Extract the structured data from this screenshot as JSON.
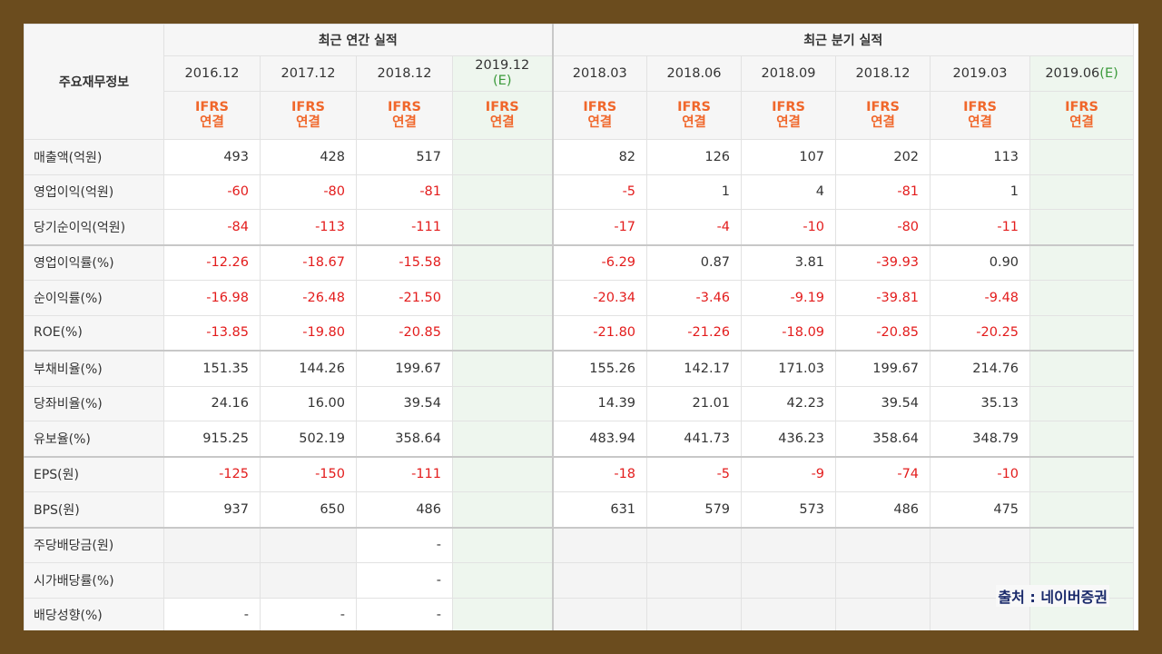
{
  "corner_label": "주요재무정보",
  "groups": {
    "annual": "최근 연간 실적",
    "quarter": "최근 분기 실적"
  },
  "annual_periods": [
    {
      "label": "2016.12",
      "est": ""
    },
    {
      "label": "2017.12",
      "est": ""
    },
    {
      "label": "2018.12",
      "est": ""
    },
    {
      "label": "2019.12",
      "est": "(E)"
    }
  ],
  "quarter_periods": [
    {
      "label": "2018.03",
      "est": ""
    },
    {
      "label": "2018.06",
      "est": ""
    },
    {
      "label": "2018.09",
      "est": ""
    },
    {
      "label": "2018.12",
      "est": ""
    },
    {
      "label": "2019.03",
      "est": ""
    },
    {
      "label": "2019.06",
      "est": "(E)"
    }
  ],
  "ifrs_line1": "IFRS",
  "ifrs_line2": "연결",
  "rows": [
    {
      "label": "매출액(억원)",
      "group_start": false,
      "annual": [
        "493",
        "428",
        "517",
        ""
      ],
      "quarter": [
        "82",
        "126",
        "107",
        "202",
        "113",
        ""
      ]
    },
    {
      "label": "영업이익(억원)",
      "group_start": false,
      "annual": [
        "-60",
        "-80",
        "-81",
        ""
      ],
      "quarter": [
        "-5",
        "1",
        "4",
        "-81",
        "1",
        ""
      ]
    },
    {
      "label": "당기순이익(억원)",
      "group_start": false,
      "annual": [
        "-84",
        "-113",
        "-111",
        ""
      ],
      "quarter": [
        "-17",
        "-4",
        "-10",
        "-80",
        "-11",
        ""
      ]
    },
    {
      "label": "영업이익률(%)",
      "group_start": true,
      "annual": [
        "-12.26",
        "-18.67",
        "-15.58",
        ""
      ],
      "quarter": [
        "-6.29",
        "0.87",
        "3.81",
        "-39.93",
        "0.90",
        ""
      ]
    },
    {
      "label": "순이익률(%)",
      "group_start": false,
      "annual": [
        "-16.98",
        "-26.48",
        "-21.50",
        ""
      ],
      "quarter": [
        "-20.34",
        "-3.46",
        "-9.19",
        "-39.81",
        "-9.48",
        ""
      ]
    },
    {
      "label": "ROE(%)",
      "group_start": false,
      "annual": [
        "-13.85",
        "-19.80",
        "-20.85",
        ""
      ],
      "quarter": [
        "-21.80",
        "-21.26",
        "-18.09",
        "-20.85",
        "-20.25",
        ""
      ]
    },
    {
      "label": "부채비율(%)",
      "group_start": true,
      "annual": [
        "151.35",
        "144.26",
        "199.67",
        ""
      ],
      "quarter": [
        "155.26",
        "142.17",
        "171.03",
        "199.67",
        "214.76",
        ""
      ]
    },
    {
      "label": "당좌비율(%)",
      "group_start": false,
      "annual": [
        "24.16",
        "16.00",
        "39.54",
        ""
      ],
      "quarter": [
        "14.39",
        "21.01",
        "42.23",
        "39.54",
        "35.13",
        ""
      ]
    },
    {
      "label": "유보율(%)",
      "group_start": false,
      "annual": [
        "915.25",
        "502.19",
        "358.64",
        ""
      ],
      "quarter": [
        "483.94",
        "441.73",
        "436.23",
        "358.64",
        "348.79",
        ""
      ]
    },
    {
      "label": "EPS(원)",
      "group_start": true,
      "annual": [
        "-125",
        "-150",
        "-111",
        ""
      ],
      "quarter": [
        "-18",
        "-5",
        "-9",
        "-74",
        "-10",
        ""
      ]
    },
    {
      "label": "BPS(원)",
      "group_start": false,
      "annual": [
        "937",
        "650",
        "486",
        ""
      ],
      "quarter": [
        "631",
        "579",
        "573",
        "486",
        "475",
        ""
      ]
    },
    {
      "label": "주당배당금(원)",
      "group_start": true,
      "annual": [
        "",
        "",
        "-",
        ""
      ],
      "quarter": [
        "",
        "",
        "",
        "",
        "",
        ""
      ]
    },
    {
      "label": "시가배당률(%)",
      "group_start": false,
      "annual": [
        "",
        "",
        "-",
        ""
      ],
      "quarter": [
        "",
        "",
        "",
        "",
        "",
        ""
      ]
    },
    {
      "label": "배당성향(%)",
      "group_start": false,
      "annual": [
        "-",
        "-",
        "-",
        ""
      ],
      "quarter": [
        "",
        "",
        "",
        "",
        "",
        ""
      ]
    }
  ],
  "source": "출처 : 네이버증권",
  "colors": {
    "negative": "#e31c1c",
    "ifrs": "#f0672b",
    "estimate": "#3b9a3b",
    "frame": "#6b4c1e"
  }
}
